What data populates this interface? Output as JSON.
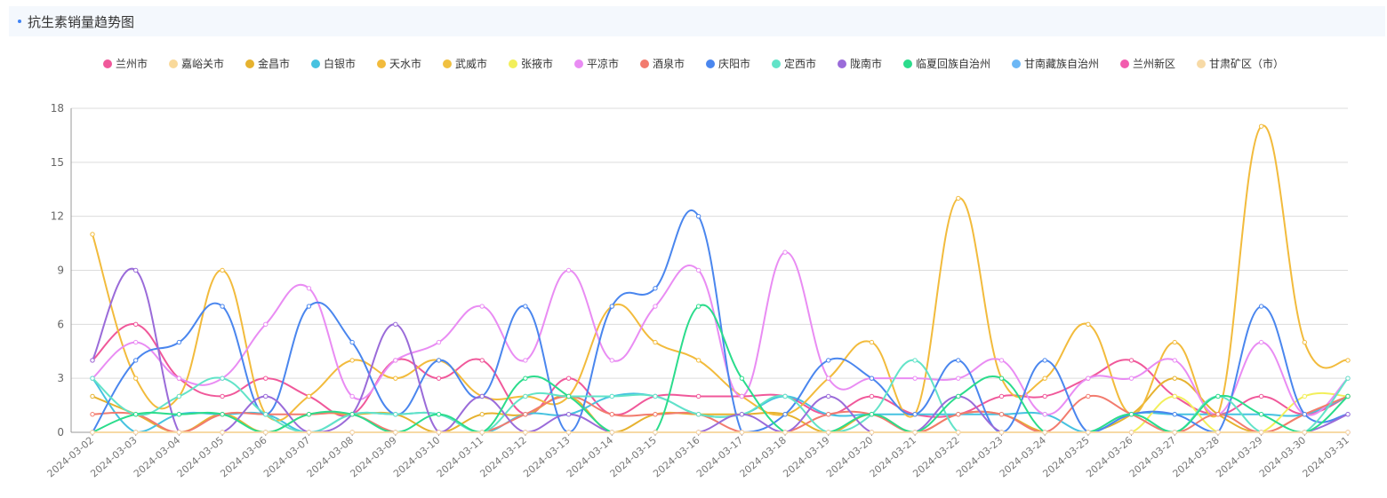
{
  "panel": {
    "title": "抗生素销量趋势图"
  },
  "chart_data": {
    "type": "line",
    "smooth": true,
    "title": "",
    "xlabel": "",
    "ylabel": "",
    "ylim": [
      0,
      18
    ],
    "yticks": [
      0,
      3,
      6,
      9,
      12,
      15,
      18
    ],
    "grid": true,
    "legend_position": "top",
    "categories": [
      "2024-03-02",
      "2024-03-03",
      "2024-03-04",
      "2024-03-05",
      "2024-03-06",
      "2024-03-07",
      "2024-03-08",
      "2024-03-09",
      "2024-03-10",
      "2024-03-11",
      "2024-03-12",
      "2024-03-13",
      "2024-03-14",
      "2024-03-15",
      "2024-03-16",
      "2024-03-17",
      "2024-03-18",
      "2024-03-19",
      "2024-03-20",
      "2024-03-21",
      "2024-03-22",
      "2024-03-23",
      "2024-03-24",
      "2024-03-25",
      "2024-03-26",
      "2024-03-27",
      "2024-03-28",
      "2024-03-29",
      "2024-03-30",
      "2024-03-31"
    ],
    "series": [
      {
        "name": "兰州市",
        "color": "#f0589a",
        "values": [
          4,
          6,
          3,
          2,
          3,
          2,
          1,
          4,
          3,
          4,
          1,
          3,
          1,
          2,
          2,
          2,
          2,
          1,
          2,
          1,
          1,
          2,
          2,
          3,
          4,
          2,
          1,
          2,
          1,
          2
        ]
      },
      {
        "name": "嘉峪关市",
        "color": "#f9d99a",
        "values": [
          0,
          0,
          0,
          0,
          0,
          0,
          0,
          0,
          0,
          0,
          0,
          0,
          0,
          0,
          0,
          0,
          0,
          0,
          0,
          0,
          0,
          0,
          0,
          0,
          0,
          0,
          0,
          0,
          0,
          0
        ]
      },
      {
        "name": "金昌市",
        "color": "#e6b22f",
        "values": [
          2,
          1,
          0,
          1,
          0,
          1,
          1,
          1,
          0,
          1,
          1,
          2,
          0,
          1,
          1,
          1,
          1,
          0,
          1,
          0,
          1,
          1,
          0,
          0,
          1,
          3,
          1,
          0,
          1,
          2
        ]
      },
      {
        "name": "白银市",
        "color": "#46c2e0",
        "values": [
          3,
          0,
          1,
          1,
          1,
          0,
          1,
          1,
          1,
          0,
          1,
          1,
          2,
          2,
          1,
          1,
          2,
          1,
          1,
          1,
          1,
          1,
          1,
          0,
          1,
          1,
          1,
          1,
          1,
          2
        ]
      },
      {
        "name": "天水市",
        "color": "#f2bb3c",
        "values": [
          11,
          3,
          2,
          9,
          1,
          2,
          4,
          3,
          4,
          2,
          2,
          2,
          7,
          5,
          4,
          2,
          1,
          3,
          5,
          1,
          13,
          3,
          3,
          6,
          1,
          5,
          1,
          17,
          5,
          4
        ]
      },
      {
        "name": "武威市",
        "color": "#f0c040",
        "values": [
          0,
          0,
          0,
          0,
          0,
          0,
          0,
          0,
          0,
          0,
          0,
          0,
          0,
          0,
          0,
          0,
          0,
          0,
          0,
          0,
          0,
          0,
          0,
          0,
          0,
          0,
          0,
          0,
          0,
          0
        ]
      },
      {
        "name": "张掖市",
        "color": "#f2ef5a",
        "values": [
          0,
          0,
          0,
          0,
          0,
          0,
          0,
          0,
          0,
          0,
          0,
          0,
          0,
          0,
          0,
          0,
          0,
          0,
          0,
          0,
          0,
          0,
          0,
          0,
          0,
          2,
          0,
          0,
          2,
          2
        ]
      },
      {
        "name": "平凉市",
        "color": "#e98cf3",
        "values": [
          3,
          5,
          3,
          3,
          6,
          8,
          2,
          4,
          5,
          7,
          4,
          9,
          4,
          7,
          9,
          2,
          10,
          3,
          3,
          3,
          3,
          4,
          1,
          3,
          3,
          4,
          1,
          5,
          1,
          3
        ]
      },
      {
        "name": "酒泉市",
        "color": "#f27b6e",
        "values": [
          1,
          1,
          0,
          1,
          1,
          1,
          1,
          0,
          0,
          0,
          1,
          2,
          1,
          1,
          1,
          0,
          0,
          1,
          1,
          0,
          1,
          1,
          0,
          2,
          1,
          0,
          1,
          0,
          1,
          2
        ]
      },
      {
        "name": "庆阳市",
        "color": "#4a86ee",
        "values": [
          0,
          4,
          5,
          7,
          1,
          7,
          5,
          1,
          4,
          2,
          7,
          0,
          7,
          8,
          12,
          0,
          1,
          4,
          3,
          1,
          4,
          0,
          4,
          0,
          1,
          1,
          0,
          7,
          1,
          1
        ]
      },
      {
        "name": "定西市",
        "color": "#62e3c8",
        "values": [
          3,
          1,
          2,
          3,
          1,
          0,
          1,
          1,
          1,
          0,
          2,
          2,
          2,
          2,
          1,
          1,
          2,
          0,
          1,
          4,
          0,
          0,
          0,
          0,
          1,
          0,
          2,
          0,
          0,
          3
        ]
      },
      {
        "name": "陇南市",
        "color": "#9a6bd9",
        "values": [
          4,
          9,
          0,
          0,
          2,
          0,
          1,
          6,
          0,
          2,
          0,
          1,
          0,
          0,
          0,
          1,
          0,
          2,
          0,
          0,
          2,
          0,
          0,
          0,
          0,
          0,
          0,
          0,
          0,
          1
        ]
      },
      {
        "name": "临夏回族自治州",
        "color": "#2bdc8c",
        "values": [
          0,
          1,
          1,
          1,
          0,
          1,
          1,
          0,
          1,
          0,
          3,
          2,
          0,
          0,
          7,
          3,
          0,
          0,
          1,
          0,
          2,
          3,
          0,
          0,
          1,
          0,
          2,
          1,
          0,
          2
        ]
      },
      {
        "name": "甘南藏族自治州",
        "color": "#6cb7f5",
        "values": [
          0,
          0,
          0,
          0,
          0,
          0,
          0,
          0,
          0,
          0,
          0,
          0,
          0,
          0,
          0,
          0,
          0,
          0,
          0,
          0,
          0,
          0,
          0,
          0,
          0,
          0,
          0,
          0,
          0,
          0
        ]
      },
      {
        "name": "兰州新区",
        "color": "#f25cae",
        "values": [
          0,
          0,
          0,
          0,
          0,
          0,
          0,
          0,
          0,
          0,
          0,
          0,
          0,
          0,
          0,
          0,
          0,
          0,
          0,
          0,
          0,
          0,
          0,
          0,
          0,
          0,
          0,
          0,
          0,
          0
        ]
      },
      {
        "name": "甘肃矿区（市）",
        "color": "#f7daa6",
        "values": [
          0,
          0,
          0,
          0,
          0,
          0,
          0,
          0,
          0,
          0,
          0,
          0,
          0,
          0,
          0,
          0,
          0,
          0,
          0,
          0,
          0,
          0,
          0,
          0,
          0,
          0,
          0,
          0,
          0,
          0
        ]
      }
    ]
  }
}
